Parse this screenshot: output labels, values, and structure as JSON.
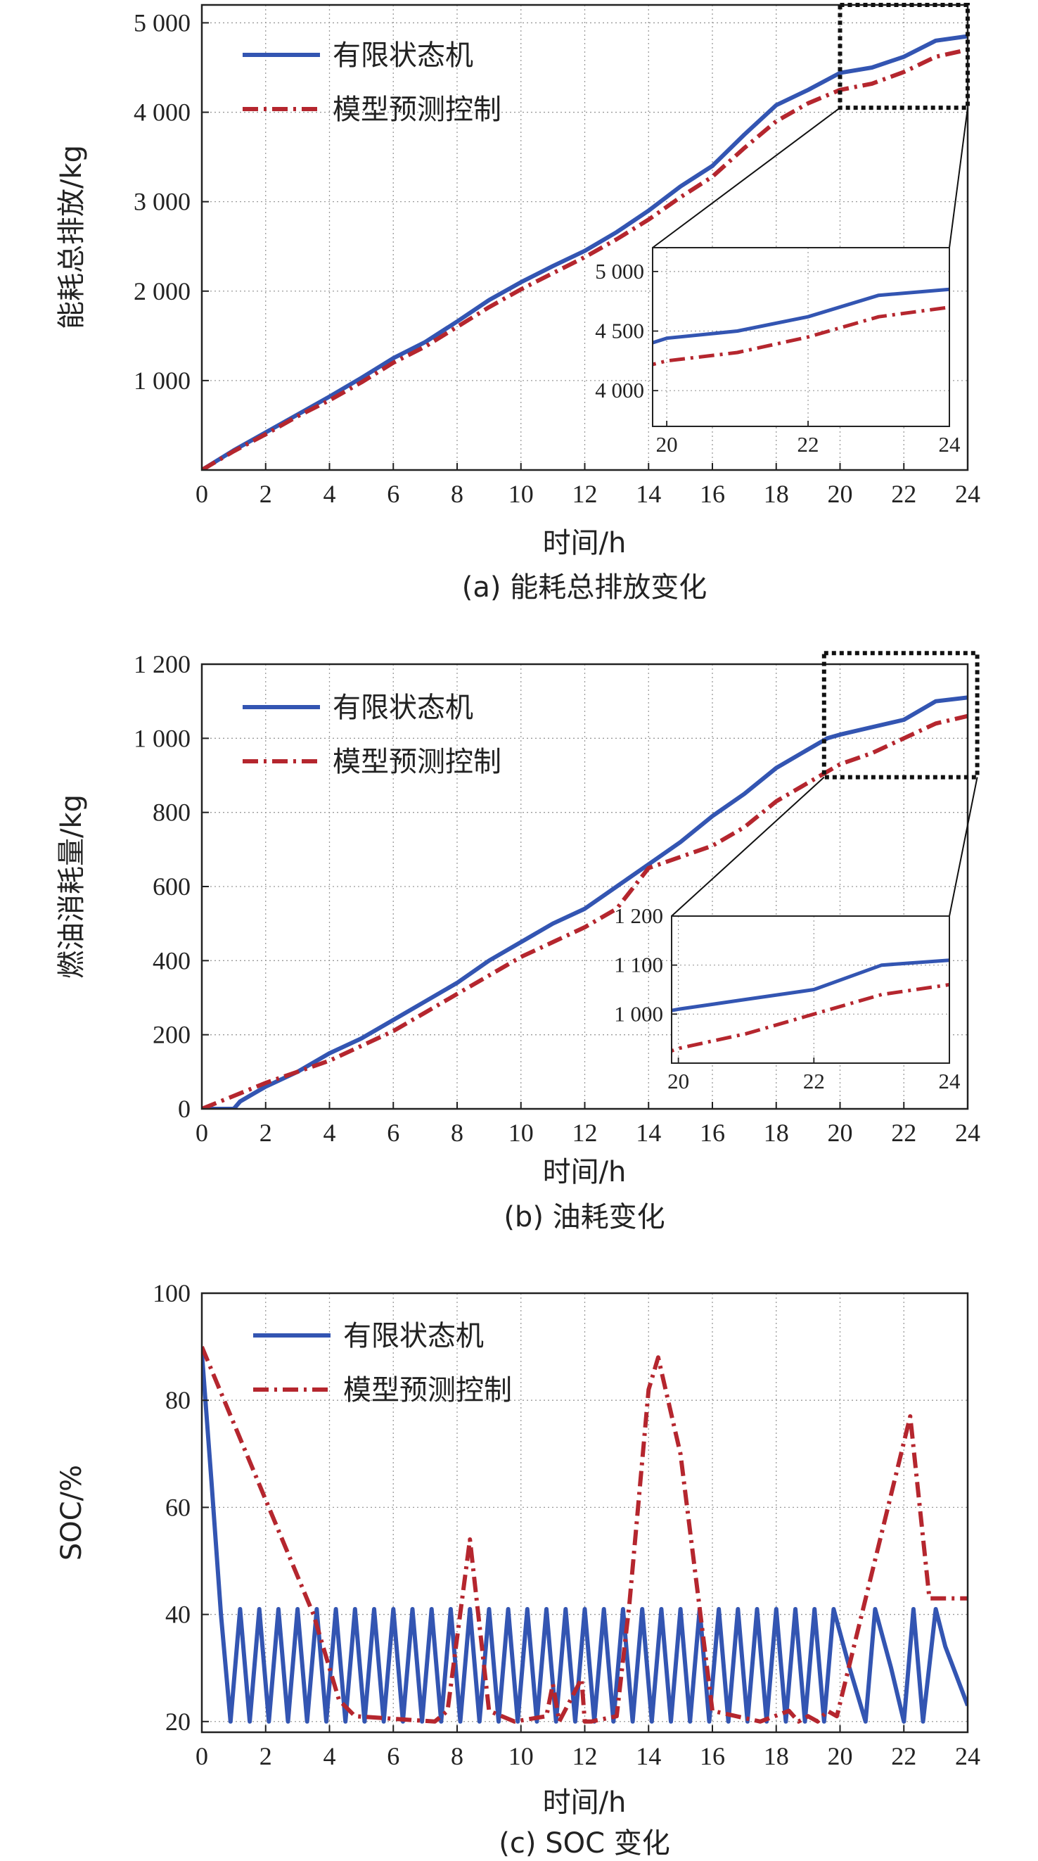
{
  "chart_data": [
    {
      "type": "line",
      "caption": "(a) 能耗总排放变化",
      "xlabel": "时间/h",
      "ylabel": "能耗总排放/kg",
      "xlim": [
        0,
        24
      ],
      "ylim": [
        0,
        5200
      ],
      "xticks": [
        "0",
        "2",
        "4",
        "6",
        "8",
        "10",
        "12",
        "14",
        "16",
        "18",
        "20",
        "22",
        "24"
      ],
      "yticks": [
        {
          "v": 1000,
          "label": "1 000"
        },
        {
          "v": 2000,
          "label": "2 000"
        },
        {
          "v": 3000,
          "label": "3 000"
        },
        {
          "v": 4000,
          "label": "4 000"
        },
        {
          "v": 5000,
          "label": "5 000"
        }
      ],
      "grid": true,
      "legend_position": "top-left",
      "series": [
        {
          "name": "有限状态机",
          "color": "#3355b2",
          "style": "solid",
          "x": [
            0,
            1,
            2,
            3,
            4,
            5,
            6,
            7,
            8,
            9,
            10,
            11,
            12,
            13,
            14,
            15,
            16,
            17,
            18,
            19,
            20,
            21,
            22,
            23,
            24
          ],
          "y": [
            0,
            220,
            420,
            620,
            820,
            1030,
            1250,
            1430,
            1660,
            1900,
            2100,
            2280,
            2450,
            2660,
            2900,
            3170,
            3400,
            3750,
            4080,
            4250,
            4440,
            4500,
            4620,
            4800,
            4850
          ]
        },
        {
          "name": "模型预测控制",
          "color": "#b5262e",
          "style": "dashdot",
          "x": [
            0,
            1,
            2,
            3,
            4,
            5,
            6,
            7,
            8,
            9,
            10,
            11,
            12,
            13,
            14,
            15,
            16,
            17,
            18,
            19,
            20,
            21,
            22,
            23,
            24
          ],
          "y": [
            0,
            210,
            400,
            600,
            780,
            980,
            1200,
            1380,
            1600,
            1820,
            2020,
            2200,
            2380,
            2580,
            2800,
            3050,
            3280,
            3600,
            3900,
            4100,
            4250,
            4320,
            4450,
            4620,
            4700
          ]
        }
      ],
      "zoom_box": {
        "xlim": [
          20,
          24
        ],
        "ylim": [
          4050,
          5200
        ]
      },
      "inset": {
        "xlim": [
          19.8,
          24
        ],
        "ylim": [
          3700,
          5200
        ],
        "xticks": [
          "20",
          "22",
          "24"
        ],
        "yticks": [
          {
            "v": 4000,
            "label": "4 000"
          },
          {
            "v": 4500,
            "label": "4 500"
          },
          {
            "v": 5000,
            "label": "5 000"
          }
        ]
      }
    },
    {
      "type": "line",
      "caption": "(b) 油耗变化",
      "xlabel": "时间/h",
      "ylabel": "燃油消耗量/kg",
      "xlim": [
        0,
        24
      ],
      "ylim": [
        0,
        1200
      ],
      "xticks": [
        "0",
        "2",
        "4",
        "6",
        "8",
        "10",
        "12",
        "14",
        "16",
        "18",
        "20",
        "22",
        "24"
      ],
      "yticks": [
        {
          "v": 0,
          "label": "0"
        },
        {
          "v": 200,
          "label": "200"
        },
        {
          "v": 400,
          "label": "400"
        },
        {
          "v": 600,
          "label": "600"
        },
        {
          "v": 800,
          "label": "800"
        },
        {
          "v": 1000,
          "label": "1 000"
        },
        {
          "v": 1200,
          "label": "1 200"
        }
      ],
      "grid": true,
      "legend_position": "top-left",
      "series": [
        {
          "name": "有限状态机",
          "color": "#3355b2",
          "style": "solid",
          "x": [
            0,
            1,
            1.2,
            1.6,
            2,
            3,
            4,
            5,
            6,
            7,
            8,
            9,
            10,
            11,
            12,
            13,
            14,
            15,
            16,
            17,
            18,
            19,
            19.6,
            20,
            21,
            22,
            23,
            24
          ],
          "y": [
            0,
            0,
            20,
            40,
            60,
            100,
            150,
            190,
            240,
            290,
            340,
            400,
            450,
            500,
            540,
            600,
            660,
            720,
            790,
            850,
            920,
            970,
            1000,
            1010,
            1030,
            1050,
            1100,
            1110
          ]
        },
        {
          "name": "模型预测控制",
          "color": "#b5262e",
          "style": "dashdot",
          "x": [
            0,
            1,
            2,
            3,
            4,
            5,
            6,
            7,
            8,
            9,
            10,
            11,
            12,
            13,
            14,
            15,
            16,
            17,
            18,
            19,
            20,
            21,
            22,
            23,
            24
          ],
          "y": [
            0,
            35,
            70,
            100,
            130,
            170,
            210,
            260,
            310,
            360,
            410,
            450,
            490,
            540,
            650,
            680,
            710,
            760,
            830,
            880,
            930,
            960,
            1000,
            1040,
            1060
          ]
        }
      ],
      "zoom_box": {
        "xlim": [
          19.5,
          24.3
        ],
        "ylim": [
          895,
          1230
        ]
      },
      "inset": {
        "xlim": [
          19.9,
          24
        ],
        "ylim": [
          900,
          1200
        ],
        "xticks": [
          "20",
          "22",
          "24"
        ],
        "yticks": [
          {
            "v": 1000,
            "label": "1 000"
          },
          {
            "v": 1100,
            "label": "1 100"
          },
          {
            "v": 1200,
            "label": "1 200"
          }
        ]
      }
    },
    {
      "type": "line",
      "caption": "(c) SOC 变化",
      "xlabel": "时间/h",
      "ylabel": "SOC/%",
      "xlim": [
        0,
        24
      ],
      "ylim": [
        18,
        100
      ],
      "xticks": [
        "0",
        "2",
        "4",
        "6",
        "8",
        "10",
        "12",
        "14",
        "16",
        "18",
        "20",
        "22",
        "24"
      ],
      "yticks": [
        {
          "v": 20,
          "label": "20"
        },
        {
          "v": 40,
          "label": "40"
        },
        {
          "v": 60,
          "label": "60"
        },
        {
          "v": 80,
          "label": "80"
        },
        {
          "v": 100,
          "label": "100"
        }
      ],
      "grid": true,
      "legend_position": "top-left",
      "series": [
        {
          "name": "有限状态机",
          "color": "#3355b2",
          "style": "solid",
          "x": [
            0,
            0.3,
            0.6,
            0.9,
            1.2,
            1.5,
            1.8,
            2.1,
            2.4,
            2.7,
            3.0,
            3.3,
            3.6,
            3.9,
            4.2,
            4.5,
            4.8,
            5.1,
            5.4,
            5.7,
            6.0,
            6.3,
            6.6,
            6.9,
            7.2,
            7.5,
            7.8,
            8.1,
            8.4,
            8.7,
            9.0,
            9.3,
            9.6,
            9.9,
            10.2,
            10.5,
            10.8,
            11.1,
            11.4,
            11.7,
            12.0,
            12.3,
            12.6,
            12.9,
            13.2,
            13.5,
            13.8,
            14.1,
            14.4,
            14.7,
            15.0,
            15.3,
            15.6,
            15.9,
            16.2,
            16.5,
            16.8,
            17.1,
            17.4,
            17.7,
            18.0,
            18.3,
            18.6,
            18.9,
            19.2,
            19.5,
            19.8,
            20.3,
            20.8,
            21.1,
            21.6,
            22.0,
            22.3,
            22.6,
            23.0,
            23.3,
            24
          ],
          "y": [
            89,
            65,
            40,
            20,
            41,
            20,
            41,
            20,
            41,
            20,
            41,
            20,
            41,
            20,
            41,
            20,
            41,
            20,
            41,
            20,
            41,
            20,
            41,
            20,
            41,
            20,
            41,
            20,
            41,
            20,
            41,
            20,
            41,
            20,
            41,
            20,
            41,
            20,
            41,
            20,
            41,
            20,
            41,
            20,
            41,
            20,
            41,
            20,
            41,
            20,
            41,
            20,
            41,
            20,
            41,
            20,
            41,
            20,
            41,
            20,
            41,
            20,
            41,
            20,
            41,
            20,
            41,
            30,
            20,
            41,
            30,
            20,
            41,
            20,
            41,
            34,
            23
          ]
        },
        {
          "name": "模型预测控制",
          "color": "#b5262e",
          "style": "dashdot",
          "x": [
            0,
            3.5,
            4.3,
            4.8,
            7.3,
            7.7,
            8.4,
            9.0,
            9.8,
            10.8,
            11.0,
            11.2,
            11.9,
            12.0,
            12.2,
            13.0,
            13.4,
            14.0,
            14.3,
            15.0,
            16.0,
            17.5,
            18.4,
            18.7,
            19.0,
            19.3,
            19.6,
            19.9,
            22.2,
            22.8,
            24
          ],
          "y": [
            90,
            40,
            24,
            21,
            20,
            22,
            54,
            22,
            20,
            21,
            27,
            20,
            28,
            20,
            20,
            21,
            42,
            82,
            88,
            70,
            22,
            20,
            22,
            20,
            21,
            20,
            22,
            21,
            77,
            43,
            43
          ]
        }
      ]
    }
  ]
}
